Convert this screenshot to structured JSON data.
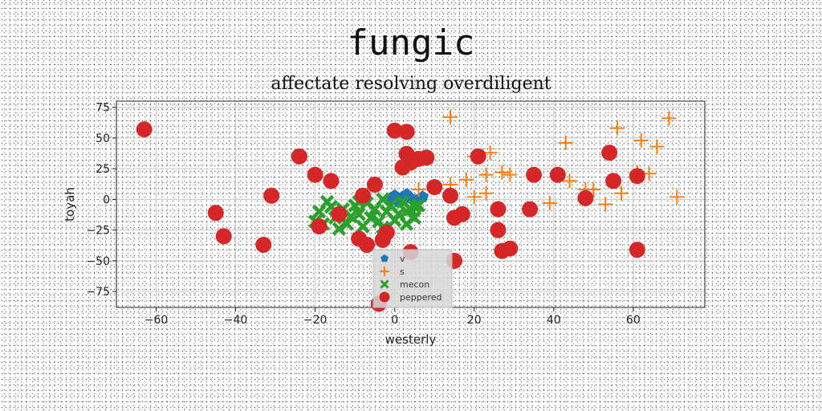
{
  "title": "fungic",
  "subtitle": "affectate resolving overdiligent",
  "chart_data": {
    "type": "scatter",
    "xlabel": "westerly",
    "ylabel": "toyah",
    "xlim": [
      -70,
      78
    ],
    "ylim": [
      -88,
      80
    ],
    "xticks": [
      -60,
      -40,
      -20,
      0,
      20,
      40,
      60
    ],
    "yticks": [
      75,
      50,
      25,
      0,
      -25,
      -50,
      -75
    ],
    "grid": true,
    "legend_position": "lower-center",
    "series": [
      {
        "name": "v",
        "marker": "pentagon",
        "color": "#1f77b4",
        "points": [
          [
            0,
            3
          ],
          [
            2,
            2
          ],
          [
            4,
            1
          ],
          [
            6,
            0
          ],
          [
            1,
            -2
          ],
          [
            3,
            4
          ],
          [
            5,
            -1
          ],
          [
            7,
            2
          ],
          [
            -1,
            1
          ]
        ]
      },
      {
        "name": "s",
        "marker": "plus",
        "color": "#ff7f0e",
        "points": [
          [
            14,
            67
          ],
          [
            24,
            38
          ],
          [
            20,
            35
          ],
          [
            18,
            16
          ],
          [
            23,
            20
          ],
          [
            27,
            22
          ],
          [
            29,
            20
          ],
          [
            14,
            12
          ],
          [
            20,
            2
          ],
          [
            23,
            5
          ],
          [
            6,
            8
          ],
          [
            43,
            46
          ],
          [
            44,
            15
          ],
          [
            48,
            8
          ],
          [
            50,
            8
          ],
          [
            53,
            -4
          ],
          [
            56,
            58
          ],
          [
            57,
            5
          ],
          [
            61,
            22
          ],
          [
            62,
            48
          ],
          [
            64,
            21
          ],
          [
            66,
            43
          ],
          [
            69,
            66
          ],
          [
            71,
            2
          ],
          [
            39,
            -3
          ]
        ]
      },
      {
        "name": "mecon",
        "marker": "x",
        "color": "#2ca02c",
        "points": [
          [
            -20,
            -18
          ],
          [
            -19,
            -10
          ],
          [
            -17,
            -2
          ],
          [
            -15,
            -15
          ],
          [
            -13,
            -8
          ],
          [
            -12,
            -20
          ],
          [
            -10,
            -5
          ],
          [
            -9,
            -12
          ],
          [
            -8,
            -22
          ],
          [
            -7,
            -3
          ],
          [
            -6,
            -15
          ],
          [
            -5,
            -8
          ],
          [
            -4,
            -18
          ],
          [
            -3,
            0
          ],
          [
            -2,
            -10
          ],
          [
            -1,
            -5
          ],
          [
            1,
            -12
          ],
          [
            2,
            -2
          ],
          [
            3,
            -20
          ],
          [
            4,
            -8
          ],
          [
            5,
            -15
          ],
          [
            6,
            -5
          ],
          [
            -18,
            -20
          ],
          [
            -16,
            -6
          ],
          [
            -11,
            -14
          ],
          [
            -14,
            -24
          ],
          [
            -9,
            -2
          ],
          [
            -3,
            -23
          ],
          [
            0,
            -17
          ],
          [
            3,
            -10
          ],
          [
            5,
            -6
          ]
        ]
      },
      {
        "name": "peppered",
        "marker": "circle",
        "color": "#d62728",
        "points": [
          [
            -63,
            57
          ],
          [
            -45,
            -11
          ],
          [
            -43,
            -30
          ],
          [
            -33,
            -37
          ],
          [
            -31,
            3
          ],
          [
            -24,
            35
          ],
          [
            -20,
            20
          ],
          [
            -16,
            15
          ],
          [
            -14,
            -12
          ],
          [
            -19,
            -22
          ],
          [
            -8,
            3
          ],
          [
            -9,
            -32
          ],
          [
            -7,
            -37
          ],
          [
            -3,
            -33
          ],
          [
            -5,
            12
          ],
          [
            -2,
            -27
          ],
          [
            0,
            56
          ],
          [
            3,
            55
          ],
          [
            3,
            37
          ],
          [
            2,
            26
          ],
          [
            4,
            30
          ],
          [
            6,
            33
          ],
          [
            8,
            34
          ],
          [
            10,
            10
          ],
          [
            14,
            3
          ],
          [
            15,
            -15
          ],
          [
            17,
            -12
          ],
          [
            21,
            35
          ],
          [
            26,
            -8
          ],
          [
            26,
            -25
          ],
          [
            27,
            -42
          ],
          [
            29,
            -40
          ],
          [
            15,
            -50
          ],
          [
            4,
            -43
          ],
          [
            -4,
            -85
          ],
          [
            34,
            -8
          ],
          [
            35,
            20
          ],
          [
            41,
            20
          ],
          [
            48,
            1
          ],
          [
            54,
            38
          ],
          [
            55,
            15
          ],
          [
            61,
            19
          ],
          [
            61,
            -41
          ]
        ]
      }
    ]
  }
}
